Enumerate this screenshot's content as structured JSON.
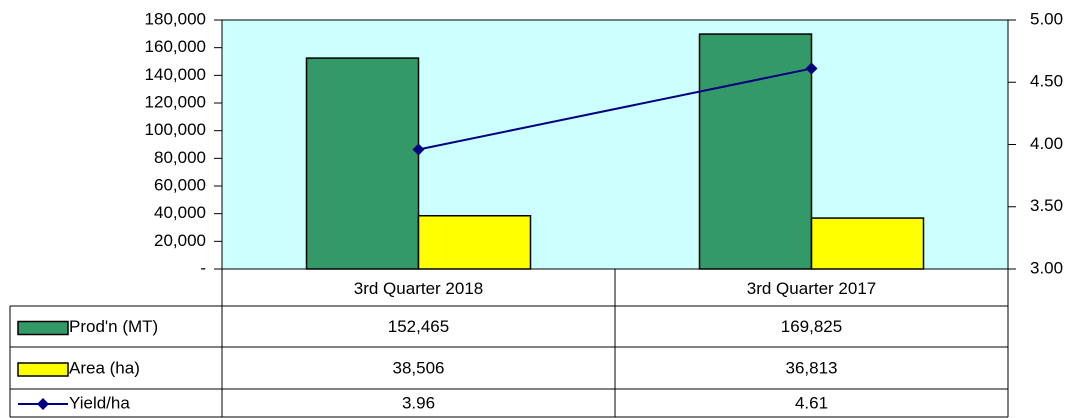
{
  "chart_data": {
    "type": "bar",
    "categories": [
      "3rd Quarter 2018",
      "3rd Quarter 2017"
    ],
    "series": [
      {
        "name": "Prod'n (MT)",
        "color": "#339966",
        "type": "bar",
        "values": [
          152465,
          169825
        ],
        "value_labels": [
          "152,465",
          "169,825"
        ]
      },
      {
        "name": "Area (ha)",
        "color": "#ffff00",
        "type": "bar",
        "values": [
          38506,
          36813
        ],
        "value_labels": [
          "38,506",
          "36,813"
        ]
      },
      {
        "name": "Yield/ha",
        "color": "#000080",
        "type": "line",
        "axis": "y2",
        "values": [
          3.96,
          4.61
        ]
      }
    ],
    "ylim": [
      0,
      180000
    ],
    "yticks": [
      {
        "value": 0,
        "label": "-"
      },
      {
        "value": 20000,
        "label": "20,000"
      },
      {
        "value": 40000,
        "label": "40,000"
      },
      {
        "value": 60000,
        "label": "60,000"
      },
      {
        "value": 80000,
        "label": "80,000"
      },
      {
        "value": 100000,
        "label": "100,000"
      },
      {
        "value": 120000,
        "label": "120,000"
      },
      {
        "value": 140000,
        "label": "140,000"
      },
      {
        "value": 160000,
        "label": "160,000"
      },
      {
        "value": 180000,
        "label": "180,000"
      }
    ],
    "y2lim": [
      3,
      5
    ],
    "y2ticks": [
      {
        "value": 3,
        "label": "3.00"
      },
      {
        "value": 3.5,
        "label": "3.50"
      },
      {
        "value": 4,
        "label": "4.00"
      },
      {
        "value": 4.5,
        "label": "4.50"
      },
      {
        "value": 5,
        "label": "5.00"
      }
    ],
    "plot_background": "#ccffff"
  }
}
